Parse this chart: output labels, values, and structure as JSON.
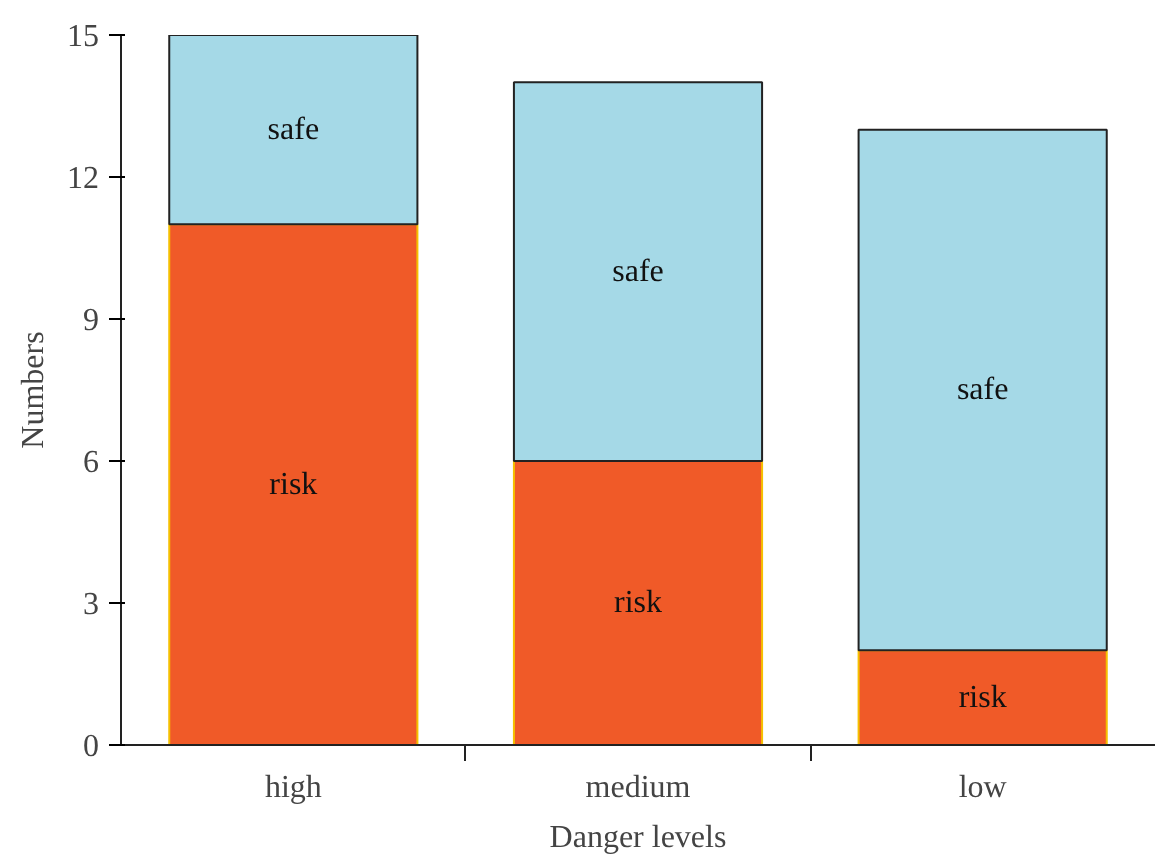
{
  "chart_data": {
    "type": "bar",
    "stacked": true,
    "xlabel": "Danger levels",
    "ylabel": "Numbers",
    "categories": [
      "high",
      "medium",
      "low"
    ],
    "series": [
      {
        "name": "risk",
        "color": "#f05a28",
        "values": [
          11,
          6,
          2
        ]
      },
      {
        "name": "safe",
        "color": "#a5d9e7",
        "values": [
          4,
          8,
          11
        ]
      }
    ],
    "ylim": [
      0,
      15
    ],
    "yticks": [
      0,
      3,
      6,
      9,
      12,
      15
    ],
    "grid": false
  }
}
